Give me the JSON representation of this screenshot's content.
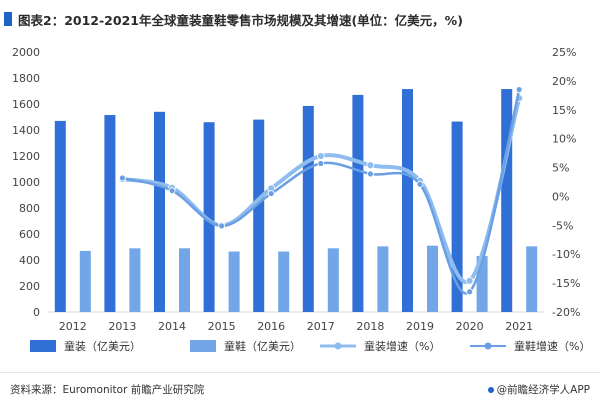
{
  "title": "图表2：2012-2021年全球童装童鞋零售市场规模及其增速(单位：亿美元，%)",
  "footer": {
    "source": "资料来源：Euromonitor 前瞻产业研究院",
    "credit": "@前瞻经济学人APP"
  },
  "colors": {
    "bar_primary": "#2f6fd6",
    "bar_secondary": "#73a6e8",
    "line_primary": "#8fbcef",
    "line_secondary": "#6aa0e3"
  },
  "chart_data": {
    "type": "bar",
    "categories": [
      "2012",
      "2013",
      "2014",
      "2015",
      "2016",
      "2017",
      "2018",
      "2019",
      "2020",
      "2021"
    ],
    "series": [
      {
        "name": "童装（亿美元）",
        "type": "bar",
        "axis": "left",
        "values": [
          1470,
          1515,
          1540,
          1460,
          1480,
          1585,
          1670,
          1715,
          1465,
          1715
        ]
      },
      {
        "name": "童鞋（亿美元）",
        "type": "bar",
        "axis": "left",
        "values": [
          470,
          490,
          490,
          465,
          465,
          490,
          505,
          510,
          430,
          505
        ]
      },
      {
        "name": "童装增速（%）",
        "type": "line",
        "axis": "right",
        "values": [
          null,
          3.0,
          1.5,
          -5.0,
          1.4,
          7.0,
          5.4,
          2.7,
          -14.6,
          17.0
        ]
      },
      {
        "name": "童鞋增速（%）",
        "type": "line",
        "axis": "right",
        "values": [
          null,
          3.2,
          1.0,
          -5.1,
          0.5,
          5.7,
          3.9,
          2.1,
          -16.5,
          18.5
        ]
      }
    ],
    "y_left": {
      "min": 0,
      "max": 2000,
      "step": 200
    },
    "y_right": {
      "min": -20,
      "max": 25,
      "step": 5,
      "unit": "%"
    },
    "legend_position": "bottom",
    "grid": false
  }
}
